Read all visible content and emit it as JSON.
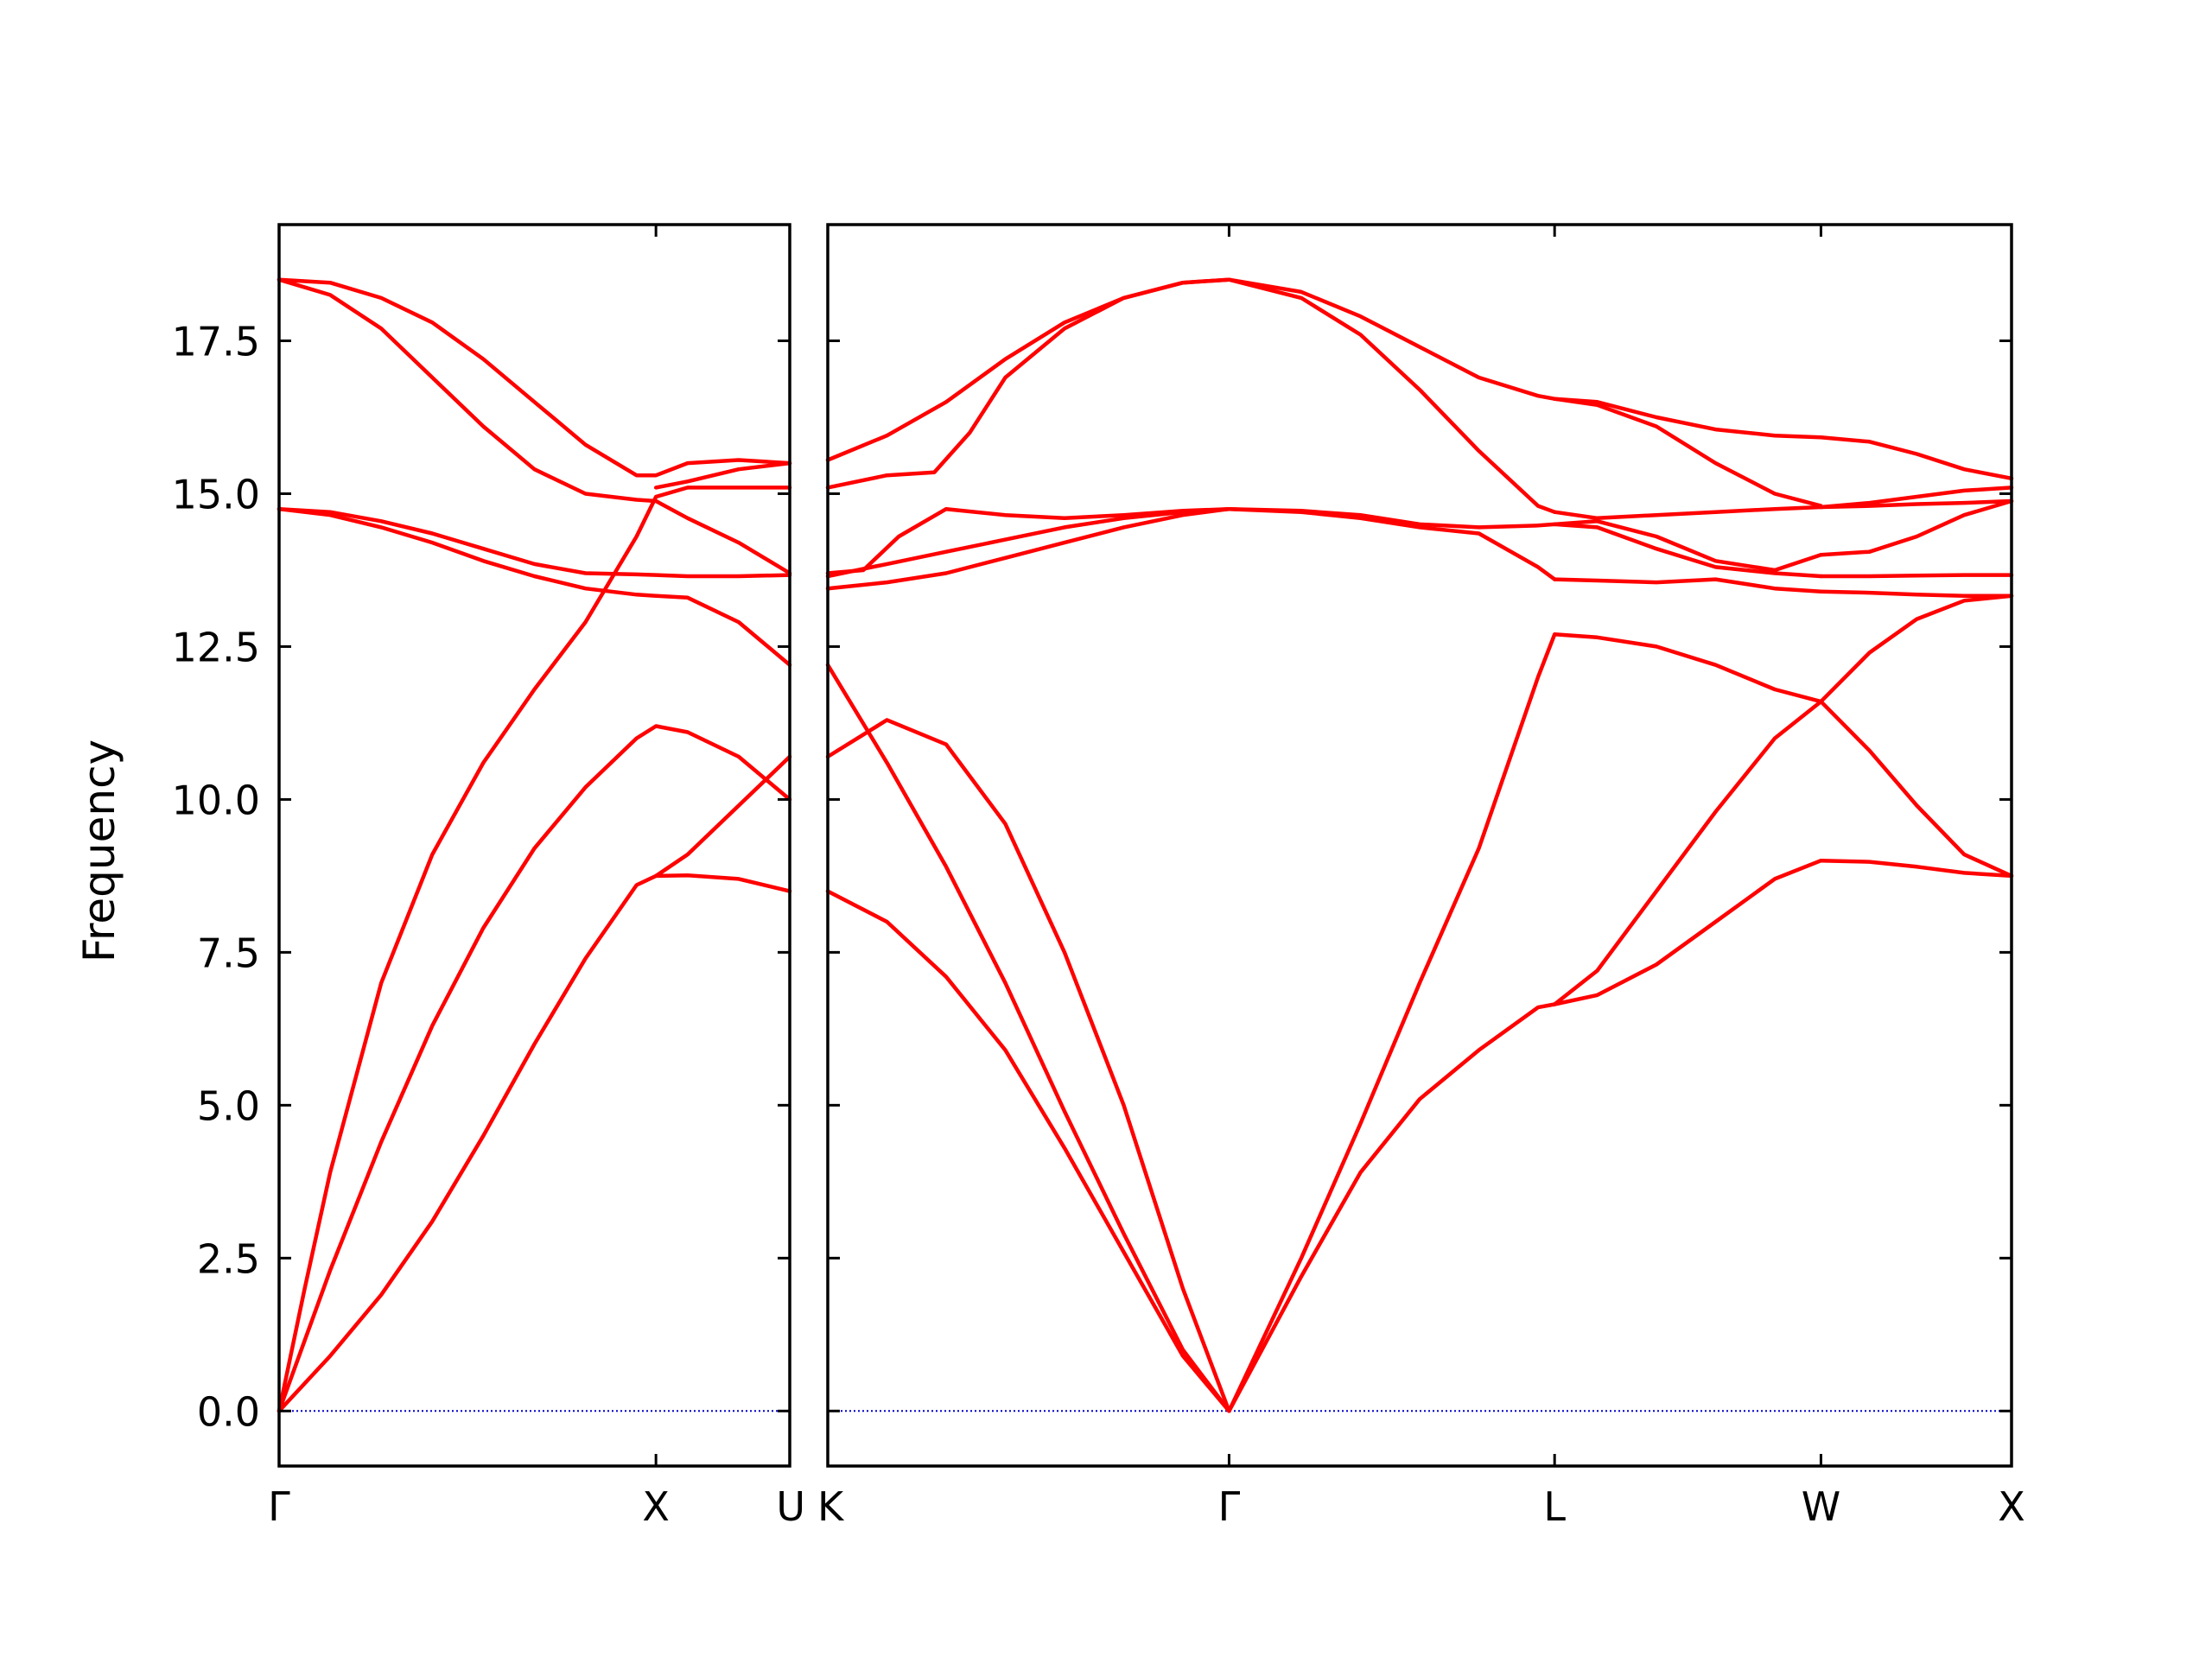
{
  "chart_data": {
    "type": "line",
    "ylabel": "Frequency",
    "ylim": [
      -0.9,
      19.4
    ],
    "yticks": [
      0.0,
      2.5,
      5.0,
      7.5,
      10.0,
      12.5,
      15.0,
      17.5
    ],
    "ytick_labels": [
      "0.0",
      "2.5",
      "5.0",
      "7.5",
      "10.0",
      "12.5",
      "15.0",
      "17.5"
    ],
    "zero_line_color": "#0000cc",
    "band_color": "#ff0000",
    "panels": [
      {
        "xlim": [
          0,
          1.0
        ],
        "high_symmetry_points": [
          {
            "x": 0.0,
            "label": "Γ"
          },
          {
            "x": 0.738,
            "label": "X"
          },
          {
            "x": 1.0,
            "label": "U"
          }
        ],
        "bands": [
          {
            "x": [
              0,
              0.1,
              0.2,
              0.3,
              0.4,
              0.5,
              0.6,
              0.7,
              0.738,
              0.8,
              0.9,
              1.0
            ],
            "y": [
              0,
              2.3,
              4.4,
              6.3,
              7.9,
              9.2,
              10.2,
              11.0,
              11.2,
              11.1,
              10.7,
              10.0
            ]
          },
          {
            "x": [
              0,
              0.1,
              0.2,
              0.3,
              0.4,
              0.5,
              0.6,
              0.7,
              0.738,
              0.8,
              0.9,
              1.0
            ],
            "y": [
              0,
              0.9,
              1.9,
              3.1,
              4.5,
              6.0,
              7.4,
              8.6,
              8.75,
              9.1,
              9.9,
              10.7
            ]
          },
          {
            "x": [
              0,
              0.05,
              0.1,
              0.2,
              0.3,
              0.4,
              0.5,
              0.6,
              0.7,
              0.738,
              0.8,
              0.9,
              1.0
            ],
            "y": [
              0,
              2.0,
              3.9,
              7.0,
              9.1,
              10.6,
              11.8,
              12.9,
              14.3,
              14.95,
              15.1,
              15.1,
              15.1
            ]
          },
          {
            "x": [
              0,
              0.1,
              0.2,
              0.3,
              0.4,
              0.5,
              0.6,
              0.7,
              0.738,
              0.8,
              0.9,
              1.0
            ],
            "y": [
              14.75,
              14.65,
              14.45,
              14.2,
              13.9,
              13.65,
              13.45,
              13.35,
              13.33,
              13.3,
              12.9,
              12.2
            ]
          },
          {
            "x": [
              0,
              0.1,
              0.2,
              0.3,
              0.4,
              0.5,
              0.6,
              0.7,
              0.738,
              0.8,
              0.9,
              1.0
            ],
            "y": [
              14.75,
              14.7,
              14.55,
              14.35,
              14.1,
              13.85,
              13.7,
              13.68,
              13.67,
              13.65,
              13.65,
              13.67
            ]
          },
          {
            "x": [
              0,
              0.1,
              0.2,
              0.3,
              0.4,
              0.5,
              0.6,
              0.7,
              0.738,
              0.8,
              0.9,
              1.0
            ],
            "y": [
              18.5,
              18.25,
              17.7,
              16.9,
              16.1,
              15.4,
              15.0,
              14.9,
              14.88,
              14.6,
              14.2,
              13.7
            ]
          },
          {
            "x": [
              0,
              0.1,
              0.2,
              0.3,
              0.4,
              0.5,
              0.6,
              0.7,
              0.738,
              0.8,
              0.9,
              1.0
            ],
            "y": [
              18.5,
              18.45,
              18.2,
              17.8,
              17.2,
              16.5,
              15.8,
              15.3,
              15.3,
              15.5,
              15.55,
              15.5
            ]
          },
          {
            "x": [
              0.738,
              0.8,
              0.9,
              1.0
            ],
            "y": [
              8.75,
              8.76,
              8.7,
              8.5
            ]
          },
          {
            "x": [
              0.738,
              0.8,
              0.9,
              1.0
            ],
            "y": [
              15.1,
              15.2,
              15.4,
              15.5
            ]
          }
        ]
      },
      {
        "xlim": [
          0,
          1.0
        ],
        "high_symmetry_points": [
          {
            "x": 0.0,
            "label": "K"
          },
          {
            "x": 0.339,
            "label": "Γ"
          },
          {
            "x": 0.614,
            "label": "L"
          },
          {
            "x": 0.839,
            "label": "W"
          },
          {
            "x": 1.0,
            "label": "X"
          }
        ],
        "bands": [
          {
            "x": [
              0,
              0.05,
              0.1,
              0.15,
              0.2,
              0.25,
              0.3,
              0.339
            ],
            "y": [
              8.5,
              8.0,
              7.1,
              5.9,
              4.3,
              2.6,
              0.9,
              0
            ]
          },
          {
            "x": [
              0,
              0.05,
              0.1,
              0.15,
              0.2,
              0.25,
              0.3,
              0.339
            ],
            "y": [
              12.2,
              10.6,
              8.9,
              7.0,
              4.9,
              2.9,
              1.0,
              0
            ]
          },
          {
            "x": [
              0,
              0.05,
              0.1,
              0.15,
              0.2,
              0.25,
              0.3,
              0.339
            ],
            "y": [
              10.7,
              11.3,
              10.9,
              9.6,
              7.5,
              5.0,
              2.0,
              0
            ]
          },
          {
            "x": [
              0,
              0.05,
              0.1,
              0.15,
              0.2,
              0.25,
              0.3,
              0.339
            ],
            "y": [
              13.45,
              13.55,
              13.7,
              13.95,
              14.2,
              14.45,
              14.65,
              14.75
            ]
          },
          {
            "x": [
              0,
              0.05,
              0.1,
              0.15,
              0.2,
              0.25,
              0.3,
              0.339
            ],
            "y": [
              13.65,
              13.85,
              14.05,
              14.25,
              14.45,
              14.6,
              14.7,
              14.75
            ]
          },
          {
            "x": [
              0,
              0.03,
              0.06,
              0.1,
              0.15,
              0.2,
              0.25,
              0.3,
              0.339
            ],
            "y": [
              13.7,
              13.75,
              14.3,
              14.75,
              14.65,
              14.6,
              14.65,
              14.72,
              14.75
            ]
          },
          {
            "x": [
              0,
              0.05,
              0.09,
              0.12,
              0.15,
              0.2,
              0.25,
              0.3,
              0.339
            ],
            "y": [
              15.1,
              15.3,
              15.35,
              16.0,
              16.9,
              17.7,
              18.2,
              18.45,
              18.5
            ]
          },
          {
            "x": [
              0,
              0.05,
              0.1,
              0.15,
              0.2,
              0.25,
              0.3,
              0.339
            ],
            "y": [
              15.55,
              15.95,
              16.5,
              17.2,
              17.8,
              18.2,
              18.45,
              18.5
            ]
          },
          {
            "x": [
              0.339,
              0.4,
              0.45,
              0.5,
              0.55,
              0.6,
              0.614
            ],
            "y": [
              0,
              2.5,
              4.7,
              7.0,
              9.2,
              12.0,
              12.7
            ]
          },
          {
            "x": [
              0.339,
              0.4,
              0.45,
              0.5,
              0.55,
              0.6,
              0.614
            ],
            "y": [
              0,
              2.2,
              3.9,
              5.1,
              5.9,
              6.6,
              6.65
            ]
          },
          {
            "x": [
              0.339,
              0.4,
              0.45,
              0.5,
              0.55,
              0.6,
              0.614
            ],
            "y": [
              14.75,
              14.7,
              14.6,
              14.45,
              14.35,
              13.8,
              13.6
            ]
          },
          {
            "x": [
              0.339,
              0.4,
              0.45,
              0.5,
              0.55,
              0.6,
              0.614
            ],
            "y": [
              14.75,
              14.72,
              14.65,
              14.5,
              14.45,
              14.48,
              14.5
            ]
          },
          {
            "x": [
              0.339,
              0.4,
              0.45,
              0.5,
              0.55,
              0.6,
              0.614
            ],
            "y": [
              18.5,
              18.2,
              17.6,
              16.7,
              15.7,
              14.8,
              14.7
            ]
          },
          {
            "x": [
              0.339,
              0.4,
              0.45,
              0.5,
              0.55,
              0.6,
              0.614
            ],
            "y": [
              18.5,
              18.3,
              17.9,
              17.4,
              16.9,
              16.6,
              16.55
            ]
          },
          {
            "x": [
              0.614,
              0.65,
              0.7,
              0.75,
              0.8,
              0.839
            ],
            "y": [
              12.7,
              12.65,
              12.5,
              12.2,
              11.8,
              11.6
            ]
          },
          {
            "x": [
              0.614,
              0.65,
              0.7,
              0.75,
              0.8,
              0.839
            ],
            "y": [
              6.65,
              6.8,
              7.3,
              8.0,
              8.7,
              9.0
            ]
          },
          {
            "x": [
              0.614,
              0.65,
              0.7,
              0.75,
              0.8,
              0.839
            ],
            "y": [
              6.65,
              7.2,
              8.5,
              9.8,
              11.0,
              11.6
            ]
          },
          {
            "x": [
              0.614,
              0.65,
              0.7,
              0.75,
              0.8,
              0.839
            ],
            "y": [
              13.6,
              13.58,
              13.55,
              13.6,
              13.45,
              13.4
            ]
          },
          {
            "x": [
              0.614,
              0.65,
              0.7,
              0.75,
              0.8,
              0.839
            ],
            "y": [
              14.5,
              14.45,
              14.1,
              13.8,
              13.7,
              13.65
            ]
          },
          {
            "x": [
              0.614,
              0.65,
              0.7,
              0.75,
              0.8,
              0.839
            ],
            "y": [
              14.7,
              14.6,
              14.65,
              14.7,
              14.75,
              14.78
            ]
          },
          {
            "x": [
              0.614,
              0.65,
              0.7,
              0.75,
              0.8,
              0.839
            ],
            "y": [
              14.5,
              14.55,
              14.3,
              13.9,
              13.75,
              14.0
            ]
          },
          {
            "x": [
              0.614,
              0.65,
              0.7,
              0.75,
              0.8,
              0.839
            ],
            "y": [
              16.55,
              16.5,
              16.25,
              16.05,
              15.95,
              15.92
            ]
          },
          {
            "x": [
              0.614,
              0.65,
              0.7,
              0.75,
              0.8,
              0.839
            ],
            "y": [
              16.55,
              16.45,
              16.1,
              15.5,
              15.0,
              14.8
            ]
          },
          {
            "x": [
              0.839,
              0.88,
              0.92,
              0.96,
              1.0
            ],
            "y": [
              11.6,
              10.8,
              9.9,
              9.1,
              8.75
            ]
          },
          {
            "x": [
              0.839,
              0.88,
              0.92,
              0.96,
              1.0
            ],
            "y": [
              9.0,
              8.98,
              8.9,
              8.8,
              8.75
            ]
          },
          {
            "x": [
              0.839,
              0.88,
              0.92,
              0.96,
              1.0
            ],
            "y": [
              11.6,
              12.4,
              12.95,
              13.25,
              13.33
            ]
          },
          {
            "x": [
              0.839,
              0.88,
              0.92,
              0.96,
              1.0
            ],
            "y": [
              13.4,
              13.38,
              13.35,
              13.33,
              13.33
            ]
          },
          {
            "x": [
              0.839,
              0.88,
              0.92,
              0.96,
              1.0
            ],
            "y": [
              13.65,
              13.65,
              13.66,
              13.67,
              13.67
            ]
          },
          {
            "x": [
              0.839,
              0.88,
              0.92,
              0.96,
              1.0
            ],
            "y": [
              14.0,
              14.05,
              14.3,
              14.65,
              14.88
            ]
          },
          {
            "x": [
              0.839,
              0.88,
              0.92,
              0.96,
              1.0
            ],
            "y": [
              14.78,
              14.8,
              14.83,
              14.85,
              14.88
            ]
          },
          {
            "x": [
              0.839,
              0.88,
              0.92,
              0.96,
              1.0
            ],
            "y": [
              14.78,
              14.85,
              14.95,
              15.05,
              15.1
            ]
          },
          {
            "x": [
              0.839,
              0.88,
              0.92,
              0.96,
              1.0
            ],
            "y": [
              15.92,
              15.85,
              15.65,
              15.4,
              15.25
            ]
          }
        ]
      }
    ]
  }
}
